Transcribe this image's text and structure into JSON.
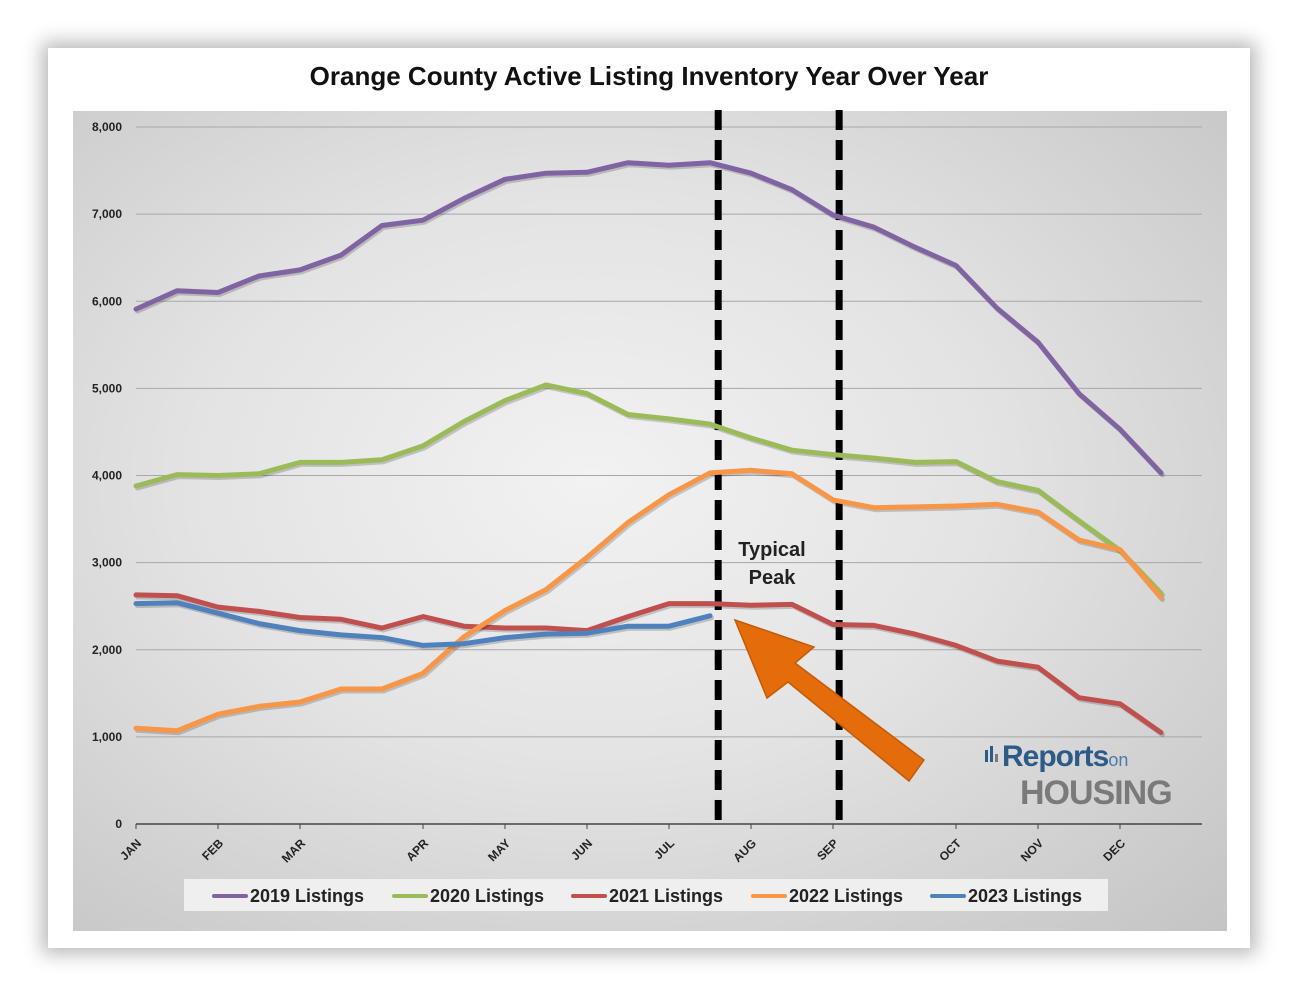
{
  "chart_data": {
    "type": "line",
    "title": "Orange County Active Listing Inventory Year Over Year",
    "xlabel": "",
    "ylabel": "",
    "ylim": [
      0,
      8000
    ],
    "yticks": [
      0,
      1000,
      2000,
      3000,
      4000,
      5000,
      6000,
      7000,
      8000
    ],
    "ytick_labels": [
      "0",
      "1,000",
      "2,000",
      "3,000",
      "4,000",
      "5,000",
      "6,000",
      "7,000",
      "8,000"
    ],
    "weeks": 53,
    "month_ticks": [
      {
        "label": "JAN",
        "week": 0
      },
      {
        "label": "FEB",
        "week": 4
      },
      {
        "label": "MAR",
        "week": 8
      },
      {
        "label": "APR",
        "week": 14
      },
      {
        "label": "MAY",
        "week": 18
      },
      {
        "label": "JUN",
        "week": 22
      },
      {
        "label": "JUL",
        "week": 26
      },
      {
        "label": "AUG",
        "week": 30
      },
      {
        "label": "SEP",
        "week": 34
      },
      {
        "label": "OCT",
        "week": 40
      },
      {
        "label": "NOV",
        "week": 44
      },
      {
        "label": "DEC",
        "week": 48
      }
    ],
    "peak_markers_week": [
      28.4,
      34.3
    ],
    "annotation": {
      "line1": "Typical",
      "line2": "Peak"
    },
    "series": [
      {
        "name": "2019 Listings",
        "color": "#8064a2",
        "values": [
          5910,
          6120,
          6100,
          6290,
          6360,
          6530,
          6870,
          6930,
          7180,
          7400,
          7470,
          7480,
          7590,
          7560,
          7590,
          7470,
          7280,
          6990,
          6850,
          6620,
          6410,
          5920,
          5530,
          4940,
          4530,
          4030
        ]
      },
      {
        "name": "2020 Listings",
        "color": "#9bbb59",
        "values": [
          3880,
          4010,
          4000,
          4020,
          4150,
          4150,
          4180,
          4340,
          4620,
          4860,
          5040,
          4940,
          4700,
          4650,
          4590,
          4430,
          4290,
          4240,
          4200,
          4150,
          4160,
          3930,
          3830,
          3480,
          3140,
          2650
        ]
      },
      {
        "name": "2021 Listings",
        "color": "#c0504d",
        "values": [
          2630,
          2620,
          2490,
          2440,
          2370,
          2350,
          2250,
          2380,
          2270,
          2250,
          2250,
          2220,
          2380,
          2530,
          2530,
          2510,
          2520,
          2290,
          2280,
          2180,
          2050,
          1870,
          1800,
          1450,
          1380,
          1050
        ]
      },
      {
        "name": "2022 Listings",
        "color": "#f79646",
        "values": [
          1100,
          1070,
          1260,
          1350,
          1400,
          1550,
          1550,
          1730,
          2150,
          2450,
          2690,
          3060,
          3460,
          3780,
          4030,
          4060,
          4020,
          3720,
          3630,
          3640,
          3650,
          3670,
          3580,
          3260,
          3150,
          2600
        ]
      },
      {
        "name": "2023 Listings",
        "color": "#4f81bd",
        "values": [
          2530,
          2540,
          2420,
          2300,
          2220,
          2170,
          2140,
          2050,
          2070,
          2140,
          2180,
          2190,
          2270,
          2270,
          2390
        ]
      }
    ]
  },
  "logo": {
    "word1": "eports",
    "word1_small": "on",
    "word2": "HOUSING",
    "initial": "R"
  }
}
